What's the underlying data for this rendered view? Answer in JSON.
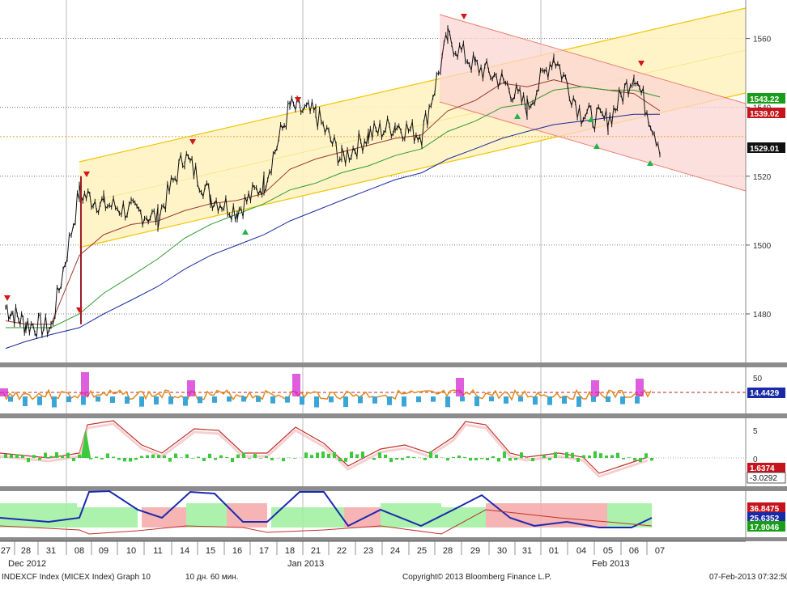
{
  "colors": {
    "price": "#111111",
    "ma_red": "#9b3a2e",
    "ma_green": "#2f9a2f",
    "ma_blue": "#1a2a9c",
    "up_channel_fill": "#fff3c2",
    "up_channel_line": "#f2c400",
    "down_channel_fill": "#fbd5d2",
    "down_channel_line": "#ea8070",
    "current_line": "#f0a030",
    "marker_down": "#d81616",
    "marker_up": "#22b34a",
    "tag_green": "#1a9e1a",
    "tag_red": "#c5141c",
    "tag_black": "#111111",
    "tag_blue": "#1a2aa6"
  },
  "main_chart": {
    "y_ticks": [
      "1560",
      "1540",
      "1520",
      "1500",
      "1480"
    ],
    "y_tick_values": [
      1560,
      1540,
      1520,
      1500,
      1480
    ],
    "y_range": [
      1470,
      1570
    ],
    "price_tags": [
      {
        "label": "1543.22",
        "value": 1543.22,
        "color": "tag_green"
      },
      {
        "label": "1539.02",
        "value": 1539.02,
        "color": "tag_red"
      },
      {
        "label": "1529.01",
        "value": 1529.01,
        "color": "tag_black"
      }
    ]
  },
  "panel1": {
    "ticks": [
      "50"
    ],
    "tags": [
      {
        "label": "14.4429",
        "color": "tag_blue"
      }
    ]
  },
  "panel2": {
    "ticks": [
      "5",
      "0"
    ],
    "tags": [
      {
        "label": "1.6374",
        "color": "tag_red"
      },
      {
        "label": "-3.0292",
        "color": "tag_white"
      }
    ]
  },
  "panel3": {
    "tags": [
      {
        "label": "36.8475",
        "color": "tag_red"
      },
      {
        "label": "25.6352",
        "color": "tag_blue"
      },
      {
        "label": "17.9046",
        "color": "tag_green"
      }
    ]
  },
  "x_axis": {
    "day_labels": [
      "27",
      "28",
      "31",
      "08",
      "09",
      "10",
      "11",
      "14",
      "15",
      "16",
      "17",
      "18",
      "21",
      "22",
      "23",
      "24",
      "25",
      "28",
      "29",
      "30",
      "31",
      "01",
      "04",
      "05",
      "06",
      "07"
    ],
    "month_labels": [
      "Dec 2012",
      "Jan 2013",
      "Feb 2013"
    ]
  },
  "footer": {
    "left": "INDEXCF Index (MICEX Index) Graph 10",
    "middle": "10 дн. 60 мин.",
    "copyright": "Copyright© 2013 Bloomberg Finance L.P.",
    "timestamp": "07-Feb-2013 07:32:50"
  },
  "chart_data": {
    "type": "line",
    "title": "",
    "ylim": [
      1470,
      1570
    ],
    "x": [
      "Dec 27",
      "Dec 28",
      "Dec 31",
      "Jan 08",
      "Jan 09",
      "Jan 10",
      "Jan 11",
      "Jan 14",
      "Jan 15",
      "Jan 16",
      "Jan 17",
      "Jan 18",
      "Jan 21",
      "Jan 22",
      "Jan 23",
      "Jan 24",
      "Jan 25",
      "Jan 28",
      "Jan 29",
      "Jan 30",
      "Jan 31",
      "Feb 01",
      "Feb 04",
      "Feb 05",
      "Feb 06",
      "Feb 07"
    ],
    "series": [
      {
        "name": "",
        "values": [
          1482,
          1477,
          1476,
          1515,
          1512,
          1510,
          1508,
          1526,
          1514,
          1510,
          1518,
          1540,
          1538,
          1525,
          1532,
          1535,
          1532,
          1560,
          1552,
          1548,
          1540,
          1555,
          1538,
          1536,
          1550,
          1529
        ]
      },
      {
        "name": "",
        "values": [
          1478,
          1477,
          1477,
          1497,
          1503,
          1506,
          1507,
          1510,
          1512,
          1513,
          1515,
          1522,
          1525,
          1527,
          1529,
          1531,
          1532,
          1539,
          1542,
          1547,
          1546,
          1548,
          1546,
          1545,
          1544,
          1539
        ]
      },
      {
        "name": "",
        "values": [
          1476,
          1476,
          1476,
          1480,
          1486,
          1491,
          1496,
          1502,
          1506,
          1509,
          1512,
          1516,
          1518,
          1521,
          1523,
          1526,
          1528,
          1533,
          1536,
          1540,
          1541,
          1545,
          1546,
          1545,
          1545,
          1543
        ]
      },
      {
        "name": "",
        "values": [
          1470,
          1472,
          1474,
          1476,
          1480,
          1484,
          1488,
          1493,
          1497,
          1500,
          1503,
          1507,
          1510,
          1513,
          1516,
          1519,
          1521,
          1525,
          1528,
          1531,
          1533,
          1535,
          1536,
          1537,
          1538,
          1538
        ]
      }
    ]
  }
}
